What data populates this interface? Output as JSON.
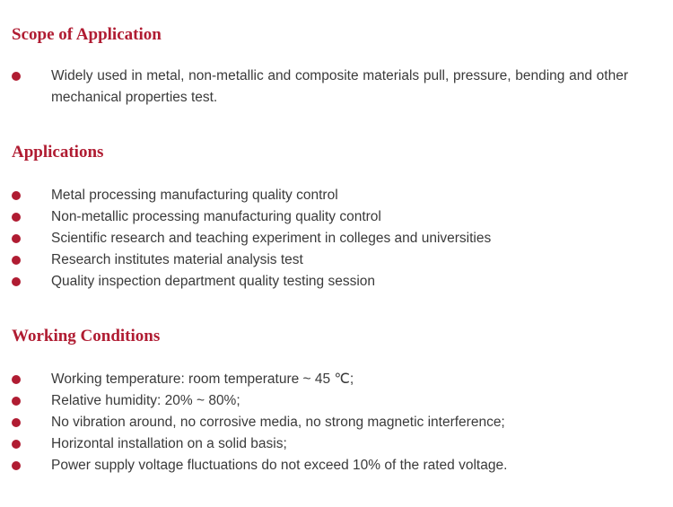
{
  "sections": [
    {
      "title": "Scope of Application",
      "items": [
        "Widely used in metal, non-metallic and composite materials pull,  pressure,  bending and other mechanical properties test."
      ]
    },
    {
      "title": "Applications",
      "items": [
        "Metal processing manufacturing quality control",
        "Non-metallic processing manufacturing quality control",
        "Scientific research and teaching experiment in colleges and universities",
        "Research institutes material analysis test",
        "Quality inspection department quality testing session"
      ]
    },
    {
      "title": "Working Conditions",
      "items": [
        "Working temperature: room temperature ~ 45 ℃;",
        "Relative humidity: 20% ~ 80%;",
        "No vibration around, no corrosive media, no strong magnetic interference;",
        "Horizontal installation on a solid basis;",
        "Power supply voltage fluctuations do not exceed 10% of the rated voltage."
      ]
    }
  ],
  "colors": {
    "accent": "#b01c32",
    "text": "#3a3a3a"
  }
}
